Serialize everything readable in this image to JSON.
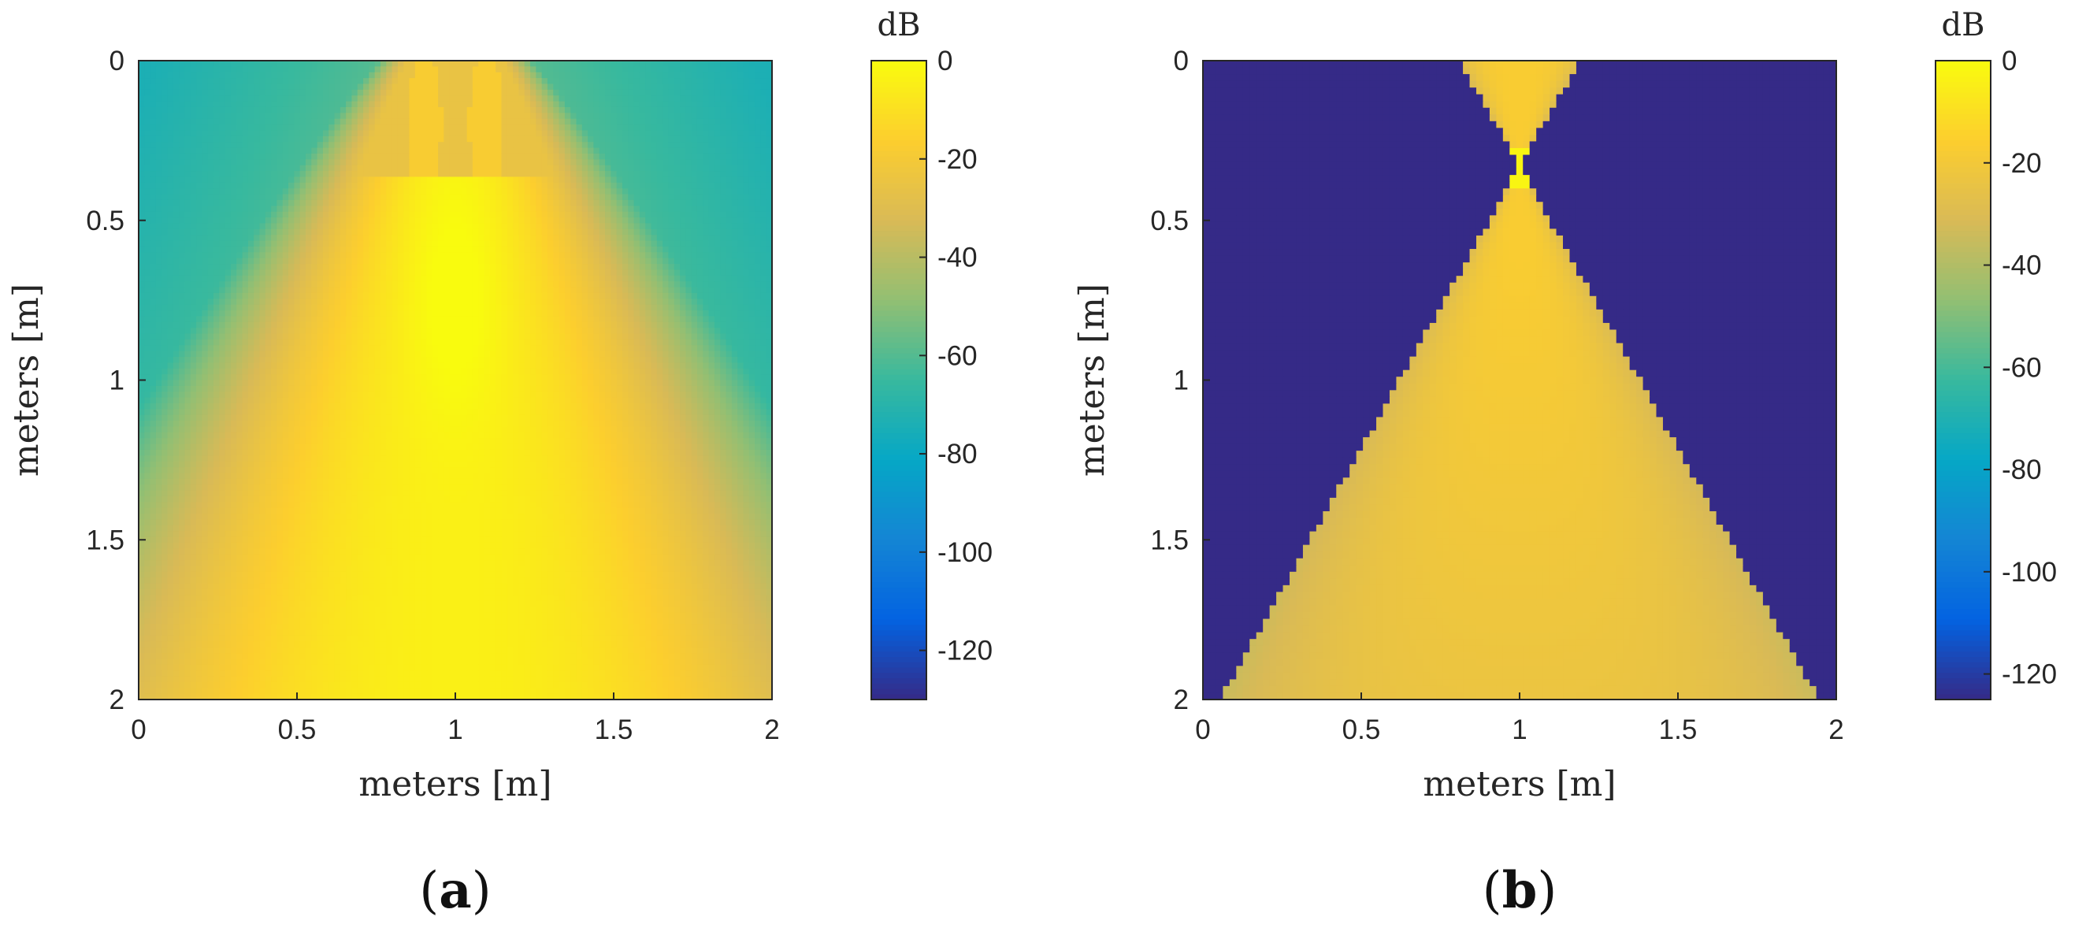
{
  "chart_data": [
    {
      "type": "heatmap",
      "panel_label": {
        "open": "(",
        "letter": "a",
        "close": ")"
      },
      "xlabel": "meters [m]",
      "ylabel": "meters [m]",
      "xlim": [
        0,
        2
      ],
      "ylim": [
        0,
        2
      ],
      "y_reversed": true,
      "x_ticks": [
        {
          "v": 0,
          "t": "0"
        },
        {
          "v": 0.5,
          "t": "0.5"
        },
        {
          "v": 1,
          "t": "1"
        },
        {
          "v": 1.5,
          "t": "1.5"
        },
        {
          "v": 2,
          "t": "2"
        }
      ],
      "y_ticks": [
        {
          "v": 0,
          "t": "0"
        },
        {
          "v": 0.5,
          "t": "0.5"
        },
        {
          "v": 1,
          "t": "1"
        },
        {
          "v": 1.5,
          "t": "1.5"
        },
        {
          "v": 2,
          "t": "2"
        }
      ],
      "field": {
        "description_key": "focused beam from two-element source near x=1, y=0; peak near (1, 0.75)",
        "source_x": [
          0.9,
          1.1
        ],
        "focus": [
          1.0,
          0.75
        ],
        "peak_db": 0,
        "background_db": -60
      },
      "colorbar": {
        "unit": "dB",
        "range": [
          -130,
          0
        ],
        "ticks": [
          {
            "v": 0,
            "t": "0"
          },
          {
            "v": -20,
            "t": "-20"
          },
          {
            "v": -40,
            "t": "-40"
          },
          {
            "v": -60,
            "t": "-60"
          },
          {
            "v": -80,
            "t": "-80"
          },
          {
            "v": -100,
            "t": "-100"
          },
          {
            "v": -120,
            "t": "-120"
          }
        ]
      }
    },
    {
      "type": "heatmap",
      "panel_label": {
        "open": "(",
        "letter": "b",
        "close": ")"
      },
      "xlabel": "meters [m]",
      "ylabel": "meters [m]",
      "xlim": [
        0,
        2
      ],
      "ylim": [
        0,
        2
      ],
      "y_reversed": true,
      "x_ticks": [
        {
          "v": 0,
          "t": "0"
        },
        {
          "v": 0.5,
          "t": "0.5"
        },
        {
          "v": 1,
          "t": "1"
        },
        {
          "v": 1.5,
          "t": "1.5"
        },
        {
          "v": 2,
          "t": "2"
        }
      ],
      "y_ticks": [
        {
          "v": 0,
          "t": "0"
        },
        {
          "v": 0.5,
          "t": "0.5"
        },
        {
          "v": 1,
          "t": "1"
        },
        {
          "v": 1.5,
          "t": "1.5"
        },
        {
          "v": 2,
          "t": "2"
        }
      ],
      "field": {
        "description_key": "hourglass-shaped lit region with apex near (1, 0.33) and outside at -125 dB",
        "apex": [
          1.0,
          0.33
        ],
        "top_edges_x": [
          0.82,
          1.2
        ],
        "bottom_edges_x": [
          0.07,
          1.96
        ],
        "inside_db_range": [
          -40,
          -15
        ],
        "outside_db": -125
      },
      "colorbar": {
        "unit": "dB",
        "range": [
          -125,
          0
        ],
        "ticks": [
          {
            "v": 0,
            "t": "0"
          },
          {
            "v": -20,
            "t": "-20"
          },
          {
            "v": -40,
            "t": "-40"
          },
          {
            "v": -60,
            "t": "-60"
          },
          {
            "v": -80,
            "t": "-80"
          },
          {
            "v": -100,
            "t": "-100"
          },
          {
            "v": -120,
            "t": "-120"
          }
        ]
      }
    }
  ],
  "colormap": [
    "#352a87",
    "#0363e1",
    "#1485d4",
    "#06a7c6",
    "#38b99e",
    "#92bf73",
    "#d9ba56",
    "#fcce2e",
    "#f9fb0e"
  ]
}
